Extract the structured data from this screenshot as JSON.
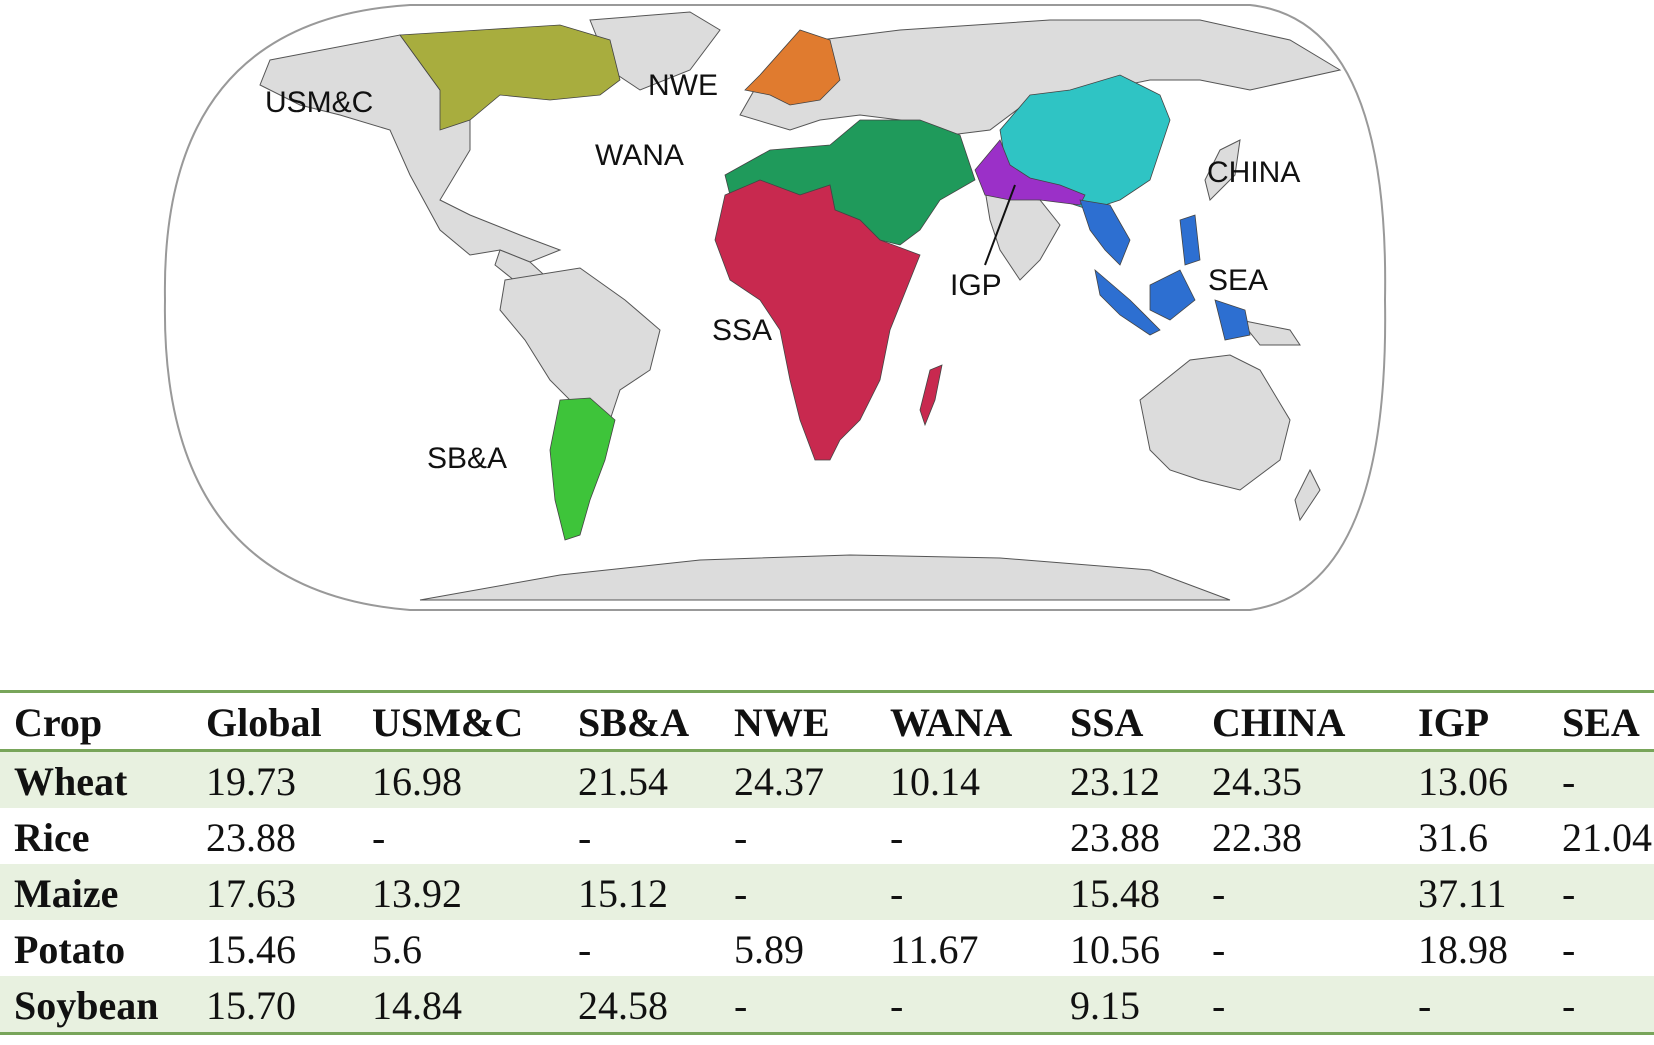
{
  "map": {
    "regions": [
      {
        "id": "usmc",
        "label": "USM&C",
        "color": "#a8ad3e"
      },
      {
        "id": "nwe",
        "label": "NWE",
        "color": "#e07b2f"
      },
      {
        "id": "wana",
        "label": "WANA",
        "color": "#1f9a5b"
      },
      {
        "id": "ssa",
        "label": "SSA",
        "color": "#c8294f"
      },
      {
        "id": "china",
        "label": "CHINA",
        "color": "#2fc4c4"
      },
      {
        "id": "igp",
        "label": "IGP",
        "color": "#9b30c8"
      },
      {
        "id": "sea",
        "label": "SEA",
        "color": "#2d6fd1"
      },
      {
        "id": "sba",
        "label": "SB&A",
        "color": "#3ec43a"
      }
    ],
    "land_color": "#dcdcdc",
    "ocean_color": "#ffffff"
  },
  "table": {
    "headers": [
      "Crop",
      "Global",
      "USM&C",
      "SB&A",
      "NWE",
      "WANA",
      "SSA",
      "CHINA",
      "IGP",
      "SEA"
    ],
    "rows": [
      [
        "Wheat",
        "19.73",
        "16.98",
        "21.54",
        "24.37",
        "10.14",
        "23.12",
        "24.35",
        "13.06",
        "-"
      ],
      [
        "Rice",
        "23.88",
        "-",
        "-",
        "-",
        "-",
        "23.88",
        "22.38",
        "31.6",
        "21.04"
      ],
      [
        "Maize",
        "17.63",
        "13.92",
        "15.12",
        "-",
        "-",
        "15.48",
        "-",
        "37.11",
        "-"
      ],
      [
        "Potato",
        "15.46",
        "5.6",
        "-",
        "5.89",
        "11.67",
        "10.56",
        "-",
        "18.98",
        "-"
      ],
      [
        "Soybean",
        "15.70",
        "14.84",
        "24.58",
        "-",
        "-",
        "9.15",
        "-",
        "-",
        "-"
      ]
    ]
  }
}
